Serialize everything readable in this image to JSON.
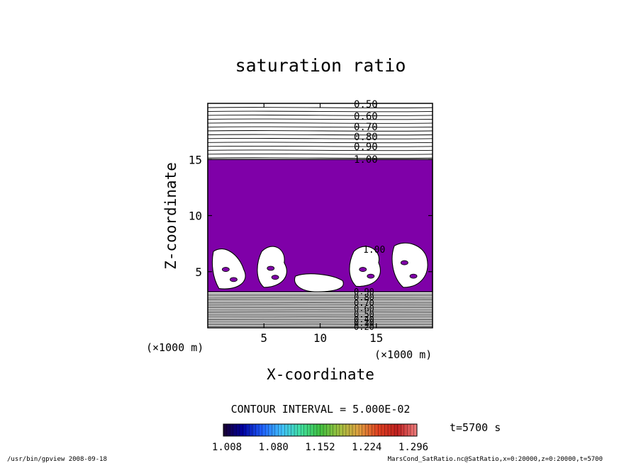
{
  "chart_data": {
    "type": "heatmap",
    "subtype": "filled-contour",
    "title": "saturation ratio",
    "xlabel": "X-coordinate",
    "ylabel": "Z-coordinate",
    "xunit_label": "(×1000 m)",
    "yunit_label": "(×1000 m)",
    "xlim": [
      0,
      20
    ],
    "ylim": [
      0,
      20
    ],
    "xticks": [
      5,
      10,
      15
    ],
    "yticks": [
      5,
      10,
      15
    ],
    "fill_color": "#7f00a8",
    "fill_region": {
      "x": [
        0,
        20
      ],
      "z_bottom_approx": 3.2,
      "z_top_approx": 15.0
    },
    "contour_labels_upper": [
      "0.50",
      "0.60",
      "0.70",
      "0.80",
      "0.90",
      "1.00"
    ],
    "contour_label_inner": "1.00",
    "contour_labels_lower": [
      "0.90",
      "0.80",
      "0.70",
      "0.60",
      "0.50",
      "0.40",
      "0.30",
      "0.20"
    ],
    "contour_interval": "CONTOUR INTERVAL = 5.000E-02",
    "time_label": "t=5700 s",
    "colorbar": {
      "ticks": [
        "1.008",
        "1.080",
        "1.152",
        "1.224",
        "1.296"
      ],
      "colors": [
        "#1a0030",
        "#0000a0",
        "#2060ff",
        "#40c0ff",
        "#40e0a0",
        "#40c040",
        "#a0c040",
        "#e0a040",
        "#e04020",
        "#c02020",
        "#f08080"
      ]
    },
    "footer_left": "/usr/bin/gpview  2008-09-18",
    "footer_right": "MarsCond_SatRatio.nc@SatRatio,x=0:20000,z=0:20000,t=5700"
  }
}
